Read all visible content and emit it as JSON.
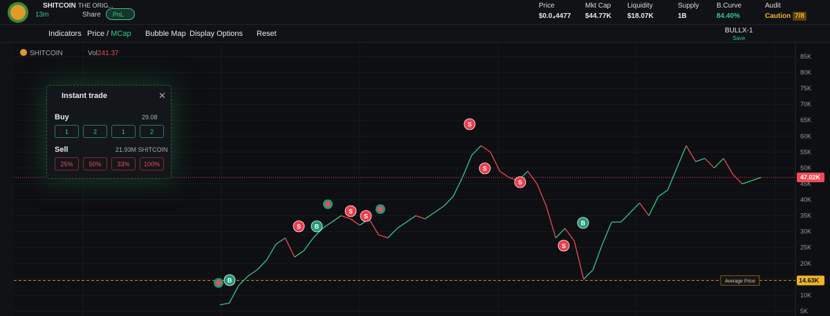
{
  "header": {
    "token": "SHITCOIN",
    "name": "THE ORIG...",
    "age": "13m",
    "share": "Share",
    "pnl": "PnL",
    "stats": [
      {
        "label": "Price",
        "value": "$0.0₄4477"
      },
      {
        "label": "Mkt Cap",
        "value": "$44.77K"
      },
      {
        "label": "Liquidity",
        "value": "$18.07K"
      },
      {
        "label": "Supply",
        "value": "1B"
      },
      {
        "label": "B.Curve",
        "value": "84.40%"
      }
    ],
    "audit": {
      "label": "Audit",
      "status": "Caution",
      "score": "7/8"
    }
  },
  "toolbar": {
    "indicators": "Indicators",
    "price": "Price",
    "slash": "/",
    "mcap": "MCap",
    "bubble": "Bubble Map",
    "display": "Display Options",
    "reset": "Reset",
    "preset": "BULLX-1",
    "save": "Save"
  },
  "chart": {
    "symbol": "SHITCOIN",
    "vol_label": "Vol",
    "vol": "241.37",
    "ylim": [
      3470,
      89340
    ],
    "yticks": [
      {
        "value": 85000,
        "label": "85K"
      },
      {
        "value": 80000,
        "label": "80K"
      },
      {
        "value": 75000,
        "label": "75K"
      },
      {
        "value": 70000,
        "label": "70K"
      },
      {
        "value": 65000,
        "label": "65K"
      },
      {
        "value": 60000,
        "label": "60K"
      },
      {
        "value": 55000,
        "label": "55K"
      },
      {
        "value": 50000,
        "label": "50K"
      },
      {
        "value": 45000,
        "label": "45K"
      },
      {
        "value": 40000,
        "label": "40K"
      },
      {
        "value": 35000,
        "label": "35K"
      },
      {
        "value": 30000,
        "label": "30K"
      },
      {
        "value": 25000,
        "label": "25K"
      },
      {
        "value": 20000,
        "label": "20K"
      },
      {
        "value": 15000,
        "label": "15K"
      },
      {
        "value": 10000,
        "label": "10K"
      },
      {
        "value": 5000,
        "label": "5K"
      }
    ],
    "values": [
      7000,
      7500,
      13000,
      16000,
      18000,
      21000,
      26000,
      28000,
      22000,
      24000,
      28000,
      31000,
      33000,
      35000,
      34000,
      32000,
      34000,
      29000,
      28000,
      31000,
      33000,
      35000,
      34000,
      36000,
      38000,
      41000,
      47000,
      54000,
      57000,
      55000,
      49000,
      47000,
      46000,
      49000,
      45000,
      38000,
      28000,
      31000,
      27000,
      15000,
      18000,
      26000,
      33000,
      33000,
      36000,
      39000,
      35000,
      41000,
      43000,
      50000,
      57000,
      52000,
      53000,
      50000,
      53000,
      48000,
      45000,
      46000,
      47000
    ],
    "price_line": {
      "value": 47020,
      "label": "47.02K"
    },
    "avg_line": {
      "value": 14630,
      "label": "14.63K",
      "name": "Average Price"
    },
    "markers": [
      "S",
      "S",
      "S",
      "S",
      "S",
      "S",
      "S",
      "B",
      "B",
      "B"
    ]
  },
  "instant_trade": {
    "title": "Instant trade",
    "buy": "Buy",
    "buy_amount": "29.08",
    "buy_buttons": [
      "1",
      "2",
      "1",
      "2"
    ],
    "sell": "Sell",
    "sell_amount": "21.93M SHITCOIN",
    "sell_buttons": [
      "25%",
      "50%",
      "33%",
      "100%"
    ]
  }
}
